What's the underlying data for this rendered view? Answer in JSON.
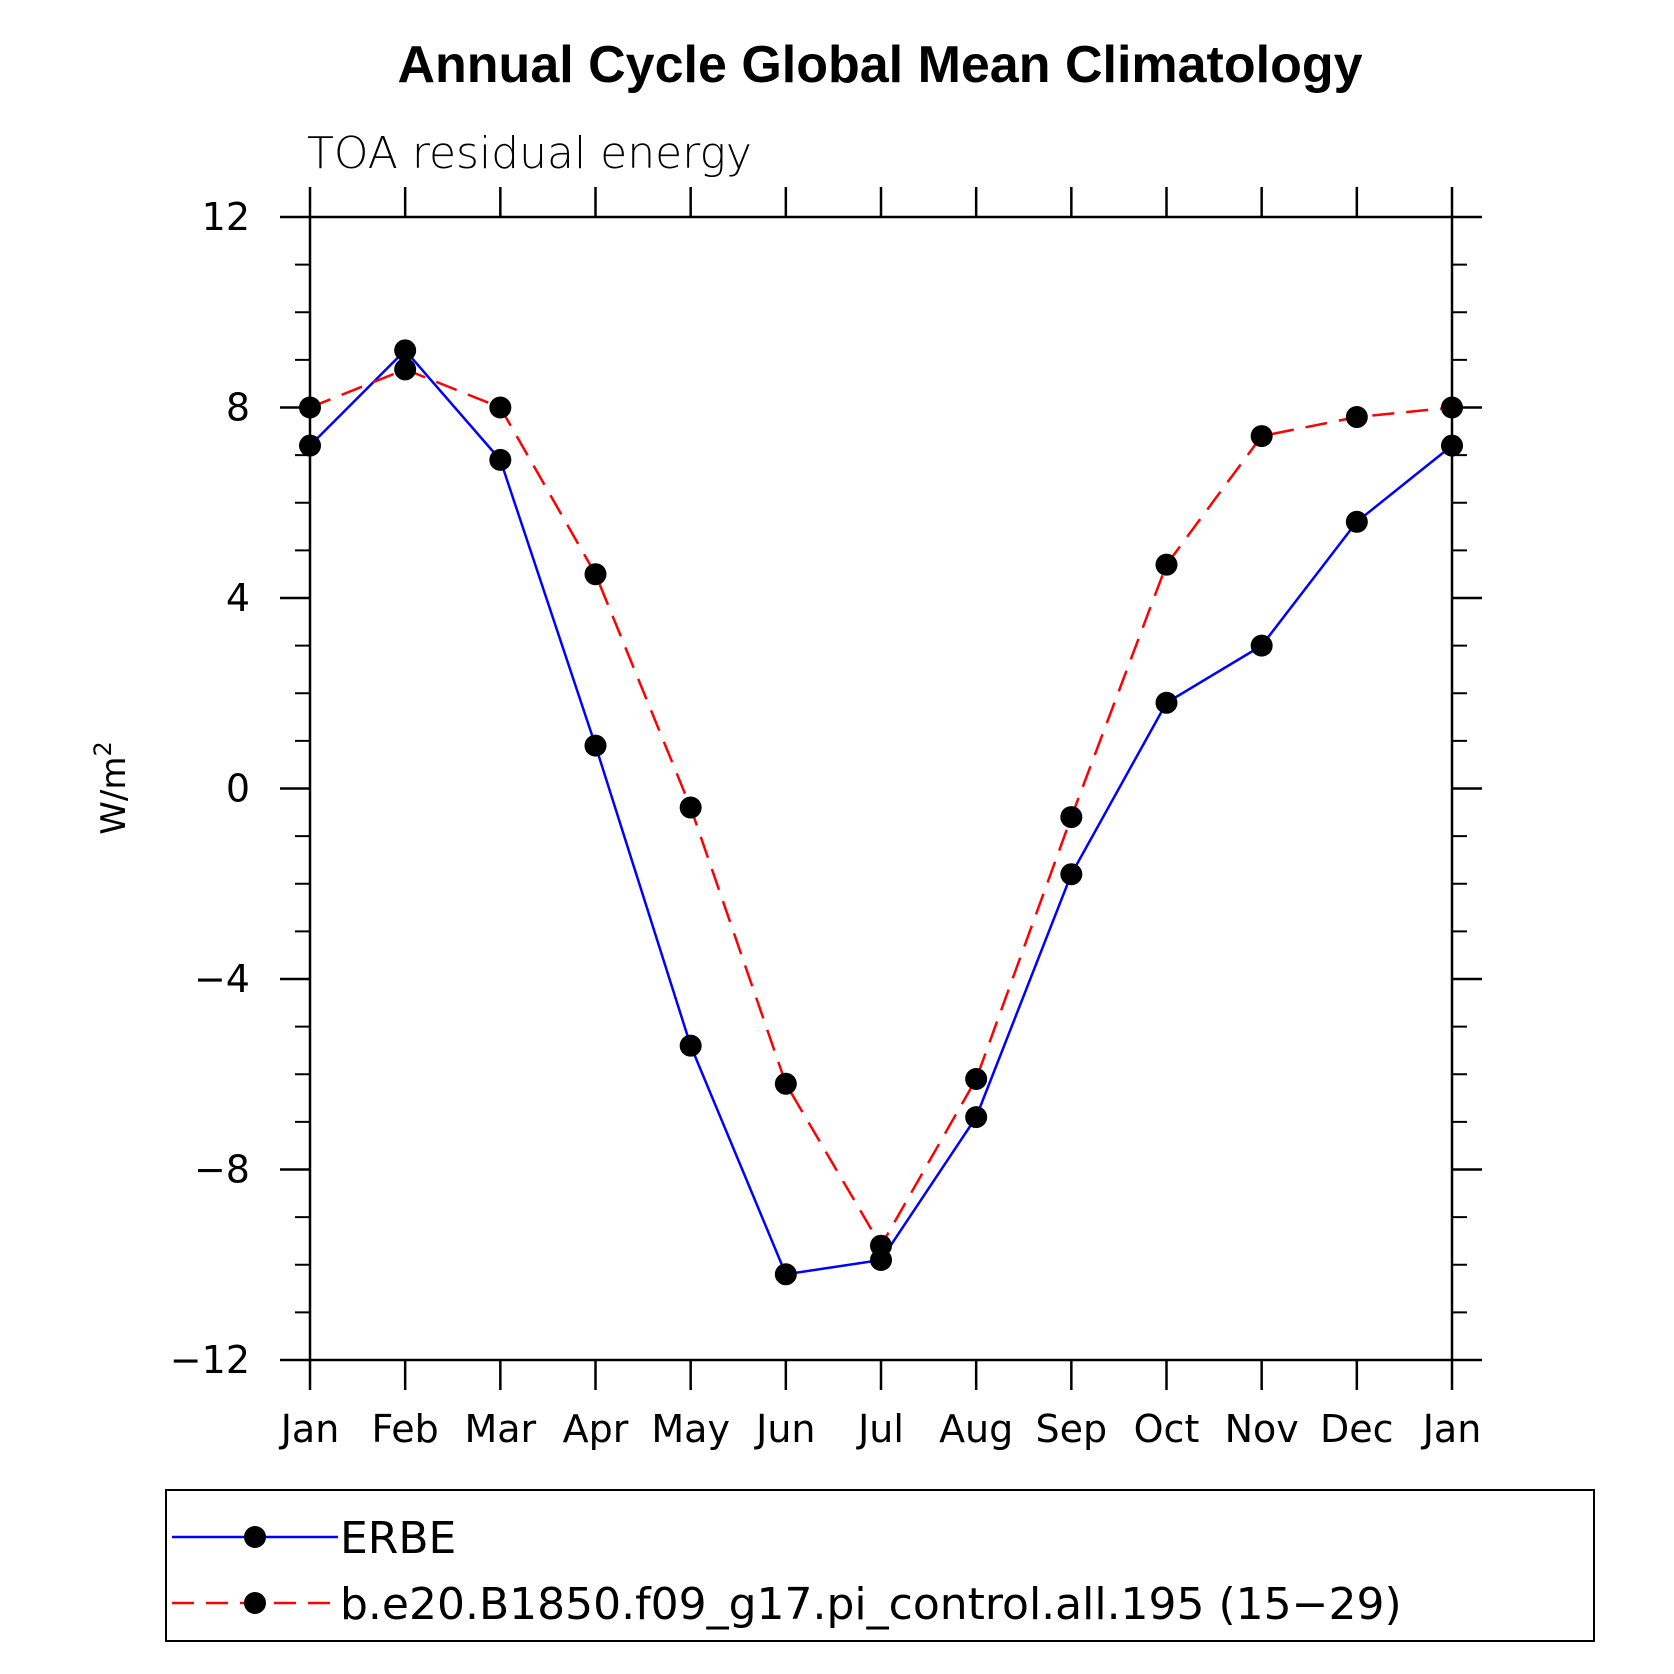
{
  "chart_data": {
    "type": "line",
    "title": "Annual Cycle Global Mean Climatology",
    "subtitle": "TOA residual energy",
    "ylabel": "W/m",
    "ylabel_superscript": "2",
    "xlabel": "",
    "categories": [
      "Jan",
      "Feb",
      "Mar",
      "Apr",
      "May",
      "Jun",
      "Jul",
      "Aug",
      "Sep",
      "Oct",
      "Nov",
      "Dec",
      "Jan"
    ],
    "ylim": [
      -12,
      12
    ],
    "yticks": [
      -12,
      -8,
      -4,
      0,
      4,
      8,
      12
    ],
    "ytick_labels": [
      "−12",
      "−8",
      "−4",
      "0",
      "4",
      "8",
      "12"
    ],
    "series": [
      {
        "name": "ERBE",
        "color": "#0000ff",
        "style": "solid",
        "values": [
          7.2,
          9.2,
          6.9,
          0.9,
          -5.4,
          -10.2,
          -9.9,
          -6.9,
          -1.8,
          1.8,
          3.0,
          5.6,
          7.2
        ]
      },
      {
        "name": "b.e20.B1850.f09_g17.pi_control.all.195 (15−29)",
        "color": "#ff0000",
        "style": "dashed",
        "values": [
          8.0,
          8.8,
          8.0,
          4.5,
          -0.4,
          -6.2,
          -9.6,
          -6.1,
          -0.6,
          4.7,
          7.4,
          7.8,
          8.0
        ]
      }
    ],
    "marker_color": "#000000",
    "grid": false,
    "legend_position": "bottom"
  }
}
